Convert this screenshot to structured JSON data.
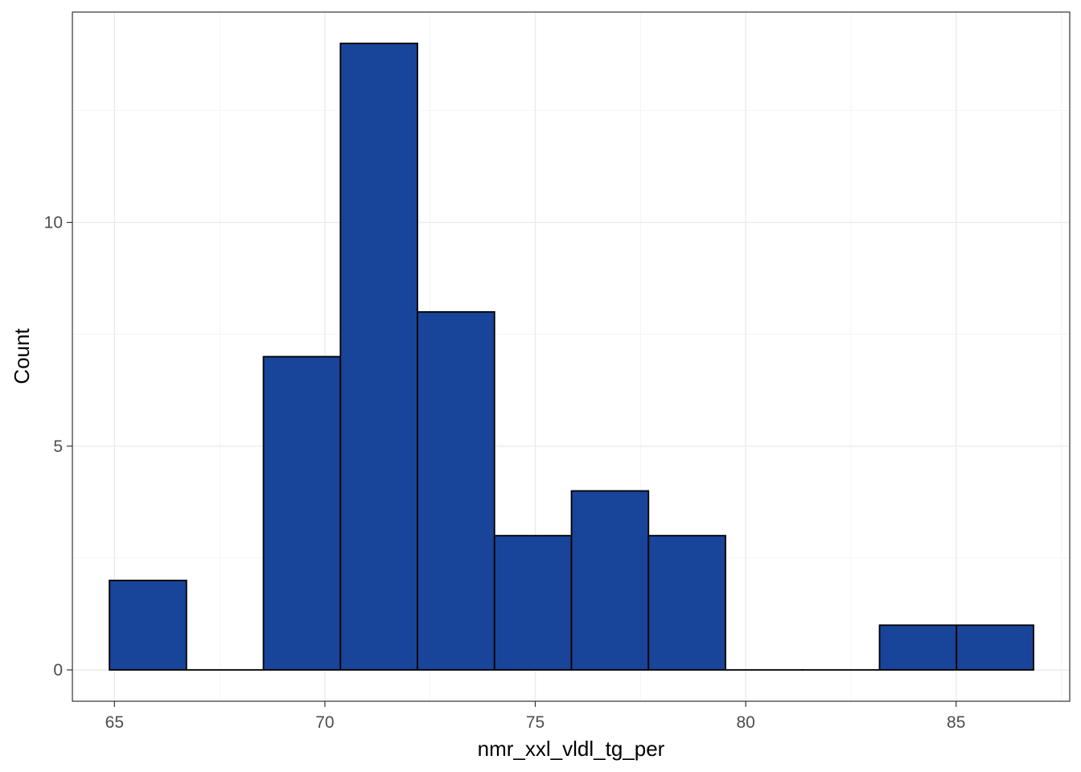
{
  "chart_data": {
    "type": "bar",
    "subtype": "histogram",
    "title": "",
    "xlabel": "nmr_xxl_vldl_tg_per",
    "ylabel": "Count",
    "xlim": [
      64.0,
      87.7
    ],
    "ylim": [
      -0.7,
      14.7
    ],
    "x_ticks": [
      65,
      70,
      75,
      80,
      85
    ],
    "x_tick_labels": [
      "65",
      "70",
      "75",
      "80",
      "85"
    ],
    "y_ticks": [
      0,
      5,
      10
    ],
    "y_tick_labels": [
      "0",
      "5",
      "10"
    ],
    "bins": [
      {
        "x0": 64.88,
        "x1": 66.71,
        "count": 2
      },
      {
        "x0": 66.71,
        "x1": 68.54,
        "count": 0
      },
      {
        "x0": 68.54,
        "x1": 70.37,
        "count": 7
      },
      {
        "x0": 70.37,
        "x1": 72.2,
        "count": 14
      },
      {
        "x0": 72.2,
        "x1": 74.03,
        "count": 8
      },
      {
        "x0": 74.03,
        "x1": 75.86,
        "count": 3
      },
      {
        "x0": 75.86,
        "x1": 77.69,
        "count": 4
      },
      {
        "x0": 77.69,
        "x1": 79.52,
        "count": 3
      },
      {
        "x0": 79.52,
        "x1": 81.35,
        "count": 0
      },
      {
        "x0": 81.35,
        "x1": 83.18,
        "count": 0
      },
      {
        "x0": 83.18,
        "x1": 85.01,
        "count": 1
      },
      {
        "x0": 85.01,
        "x1": 86.84,
        "count": 1
      }
    ],
    "grid": true,
    "legend": "none",
    "colors": {
      "bar_fill": "#18449A",
      "bar_stroke": "#000000",
      "grid_major": "#EBEBEB",
      "grid_minor": "#F4F4F4",
      "panel_border": "#333333",
      "tick_label": "#4D4D4D",
      "axis_title": "#000000"
    }
  }
}
